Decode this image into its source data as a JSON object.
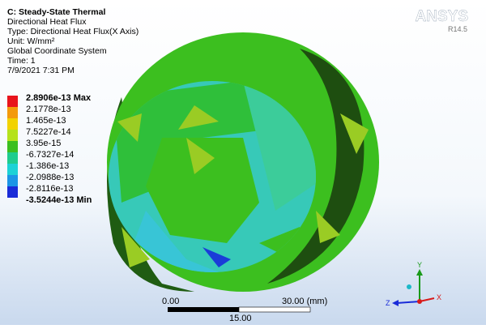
{
  "header": {
    "title": "C: Steady-State Thermal",
    "lines": [
      "Directional Heat Flux",
      "Type: Directional Heat Flux(X Axis)",
      "Unit: W/mm²",
      "Global Coordinate System",
      "Time: 1",
      "7/9/2021 7:31 PM"
    ]
  },
  "logo": {
    "name": "ANSYS",
    "version": "R14.5"
  },
  "legend": {
    "labels": [
      "2.8906e-13 Max",
      "2.1778e-13",
      "1.465e-13",
      "7.5227e-14",
      "3.95e-15",
      "-6.7327e-14",
      "-1.386e-13",
      "-2.0988e-13",
      "-2.8116e-13",
      "-3.5244e-13 Min"
    ]
  },
  "scale_bar": {
    "start": "0.00",
    "end": "30.00 (mm)",
    "middle": "15.00"
  },
  "triad": {
    "y": "Y",
    "x": "X",
    "z": "Z"
  }
}
